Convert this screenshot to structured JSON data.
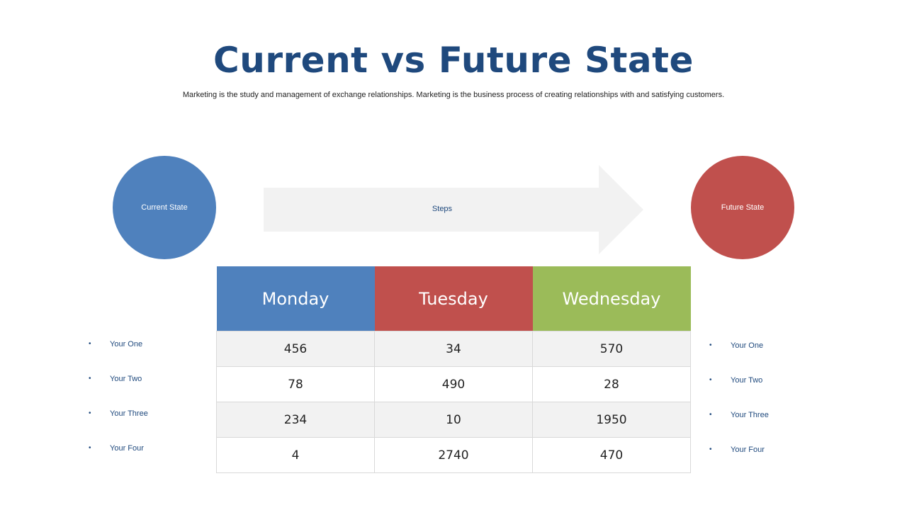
{
  "title": "Current vs Future State",
  "subtitle": "Marketing is the study and management of exchange relationships. Marketing is the business process of creating relationships with and satisfying customers.",
  "current_state": {
    "label": "Current State",
    "color": "#4f81bd"
  },
  "future_state": {
    "label": "Future State",
    "color": "#c0504d"
  },
  "arrow": {
    "label": "Steps",
    "color": "#f2f2f2"
  },
  "table": {
    "headers": [
      "Monday",
      "Tuesday",
      "Wednesday"
    ],
    "header_colors": [
      "#4f81bd",
      "#c0504d",
      "#9bbb59"
    ],
    "rows": [
      [
        "456",
        "34",
        "570"
      ],
      [
        "78",
        "490",
        "28"
      ],
      [
        "234",
        "10",
        "1950"
      ],
      [
        "4",
        "2740",
        "470"
      ]
    ]
  },
  "left_list": [
    "Your One",
    "Your Two",
    "Your Three",
    "Your Four"
  ],
  "right_list": [
    "Your One",
    "Your Two",
    "Your Three",
    "Your Four"
  ]
}
